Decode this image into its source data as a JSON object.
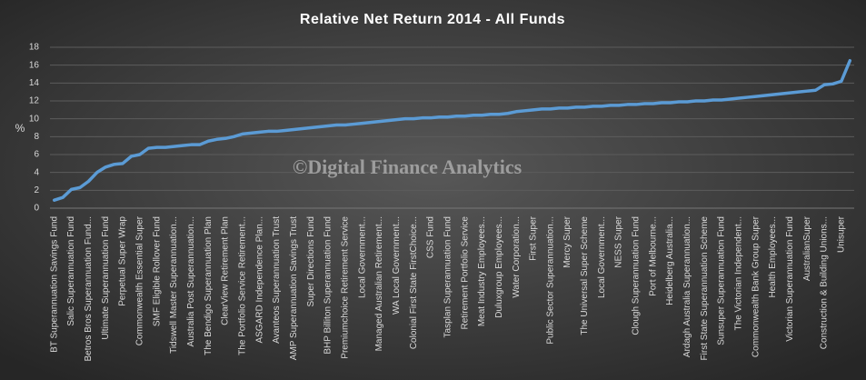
{
  "chart_data": {
    "type": "line",
    "title": "Relative Net Return 2014 - All Funds",
    "y_label": "%",
    "watermark": "©Digital Finance Analytics",
    "color": "#5b9bd5",
    "grid": true,
    "ylim": [
      0,
      18
    ],
    "yticks": [
      0,
      2,
      4,
      6,
      8,
      10,
      12,
      14,
      16,
      18
    ],
    "categories": [
      "BT Superannuation Savings Fund",
      null,
      "Salic Superannuation Fund",
      null,
      "Betros Bros Superannuation Fund...",
      null,
      "Ultimate Superannuation Fund",
      null,
      "Perpetual Super Wrap",
      null,
      "Commonwealth Essential Super",
      null,
      "SMF Eligible Rollover Fund",
      null,
      "Tidswell Master Superannuation...",
      null,
      "Australia Post Superannuation...",
      null,
      "The Bendigo Superannuation Plan",
      null,
      "ClearView Retirement Plan",
      null,
      "The Portfolio Service Retirement...",
      null,
      "ASGARD Independence Plan...",
      null,
      "Avanteos Superannuation Trust",
      null,
      "AMP Superannuation Savings Trust",
      null,
      "Super Directions Fund",
      null,
      "BHP Billiton Superannuation Fund",
      null,
      "Premiumchoice Retirement Service",
      null,
      "Local Government...",
      null,
      "Managed Australian Retirement...",
      null,
      "WA Local Government...",
      null,
      "Colonial First State FirstChoice...",
      null,
      "CSS Fund",
      null,
      "Tasplan Superannuation Fund",
      null,
      "Retirement Portfolio Service",
      null,
      "Meat Industry Employees...",
      null,
      "Duluxgroup Employees...",
      null,
      "Water Corporation...",
      null,
      "First Super",
      null,
      "Public Sector Superannuation...",
      null,
      "Mercy Super",
      null,
      "The Universal Super Scheme",
      null,
      "Local Government...",
      null,
      "NESS Super",
      null,
      "Clough Superannuation Fund",
      null,
      "Port of Melbourne...",
      null,
      "Heidelberg Australia...",
      null,
      "Ardagh Australia Superannuation...",
      null,
      "First State Superannuation Scheme",
      null,
      "Sunsuper Superannuation Fund",
      null,
      "The Victorian Independent...",
      null,
      "Commonwealth Bank Group Super",
      null,
      "Health Employees...",
      null,
      "Victorian Superannuation Fund",
      null,
      "AustralianSuper",
      null,
      "Construction & Building Unions...",
      null,
      "Unisuper",
      null
    ],
    "values": [
      0.9,
      1.2,
      2.1,
      2.3,
      3.0,
      4.0,
      4.6,
      4.9,
      5.0,
      5.8,
      6.0,
      6.7,
      6.8,
      6.8,
      6.9,
      7.0,
      7.1,
      7.1,
      7.5,
      7.7,
      7.8,
      8.0,
      8.3,
      8.4,
      8.5,
      8.6,
      8.6,
      8.7,
      8.8,
      8.9,
      9.0,
      9.1,
      9.2,
      9.3,
      9.3,
      9.4,
      9.5,
      9.6,
      9.7,
      9.8,
      9.9,
      10.0,
      10.0,
      10.1,
      10.1,
      10.2,
      10.2,
      10.3,
      10.3,
      10.4,
      10.4,
      10.5,
      10.5,
      10.6,
      10.8,
      10.9,
      11.0,
      11.1,
      11.1,
      11.2,
      11.2,
      11.3,
      11.3,
      11.4,
      11.4,
      11.5,
      11.5,
      11.6,
      11.6,
      11.7,
      11.7,
      11.8,
      11.8,
      11.9,
      11.9,
      12.0,
      12.0,
      12.1,
      12.1,
      12.2,
      12.3,
      12.4,
      12.5,
      12.6,
      12.7,
      12.8,
      12.9,
      13.0,
      13.1,
      13.2,
      13.8,
      13.9,
      14.2,
      16.5
    ]
  }
}
